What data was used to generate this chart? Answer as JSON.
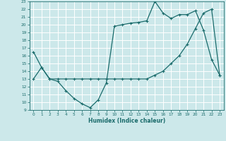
{
  "xlabel": "Humidex (Indice chaleur)",
  "bg_color": "#cce8ea",
  "grid_color": "#ffffff",
  "line_color": "#1a6b6b",
  "xlim": [
    -0.5,
    23.5
  ],
  "ylim": [
    9,
    23
  ],
  "xticks": [
    0,
    1,
    2,
    3,
    4,
    5,
    6,
    7,
    8,
    9,
    10,
    11,
    12,
    13,
    14,
    15,
    16,
    17,
    18,
    19,
    20,
    21,
    22,
    23
  ],
  "yticks": [
    9,
    10,
    11,
    12,
    13,
    14,
    15,
    16,
    17,
    18,
    19,
    20,
    21,
    22,
    23
  ],
  "curve1_x": [
    0,
    1,
    2,
    3,
    4,
    5,
    6,
    7,
    8,
    9,
    10,
    11,
    12,
    13,
    14,
    15,
    16,
    17,
    18,
    19,
    20,
    21,
    22,
    23
  ],
  "curve1_y": [
    16.5,
    14.5,
    13.0,
    12.7,
    11.5,
    10.5,
    9.8,
    9.3,
    10.3,
    12.5,
    19.8,
    20.0,
    20.2,
    20.3,
    20.5,
    23.0,
    21.5,
    20.8,
    21.3,
    21.3,
    21.8,
    19.3,
    15.5,
    13.5
  ],
  "curve2_x": [
    0,
    1,
    2,
    3,
    4,
    5,
    6,
    7,
    8,
    9,
    10,
    11,
    12,
    13,
    14,
    15,
    16,
    17,
    18,
    19,
    20,
    21,
    22,
    23
  ],
  "curve2_y": [
    13.0,
    14.5,
    13.0,
    13.0,
    13.0,
    13.0,
    13.0,
    13.0,
    13.0,
    13.0,
    13.0,
    13.0,
    13.0,
    13.0,
    13.0,
    13.5,
    14.0,
    15.0,
    16.0,
    17.5,
    19.5,
    21.5,
    22.0,
    13.5
  ]
}
